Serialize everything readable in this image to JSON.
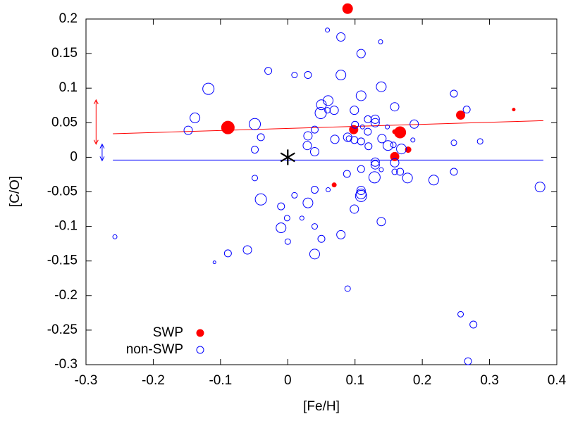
{
  "chart_data": {
    "type": "scatter",
    "x_label": "[Fe/H]",
    "y_label": "[C/O]",
    "xlim": [
      -0.3,
      0.4
    ],
    "xticks": [
      -0.3,
      -0.2,
      -0.1,
      0,
      0.1,
      0.2,
      0.3,
      0.4
    ],
    "ylim": [
      -0.3,
      0.2
    ],
    "yticks": [
      -0.3,
      -0.25,
      -0.2,
      -0.15,
      -0.1,
      -0.05,
      0,
      0.05,
      0.1,
      0.15,
      0.2
    ],
    "legend": "lower left",
    "series": [
      {
        "name": "SWP",
        "color": "#ff0000",
        "filled": true,
        "x": [
          0.089,
          -0.089,
          0.098,
          0.167,
          0.159,
          0.257,
          0.336,
          0.159,
          0.179,
          0.069
        ],
        "values": [
          0.215,
          0.043,
          0.04,
          0.036,
          0.037,
          0.061,
          0.069,
          0.001,
          0.011,
          -0.04
        ],
        "sizes": [
          7,
          9,
          6,
          8,
          3,
          6,
          2,
          6,
          4,
          3
        ]
      },
      {
        "name": "non-SWP",
        "color": "#0000ff",
        "filled": false,
        "x": [
          0.059,
          0.079,
          0.109,
          0.138,
          -0.029,
          0.01,
          0.03,
          0.079,
          -0.118,
          0.109,
          0.139,
          0.247,
          -0.138,
          -0.148,
          -0.049,
          0.05,
          0.06,
          0.069,
          0.059,
          0.049,
          0.099,
          0.119,
          0.13,
          0.13,
          0.159,
          0.188,
          0.266,
          0.1,
          0.04,
          0.03,
          0.111,
          0.119,
          0.148,
          0.089,
          0.099,
          0.091,
          0.07,
          0.029,
          0.04,
          0.109,
          0.12,
          0.14,
          0.186,
          0.169,
          0.247,
          0.286,
          -0.049,
          -0.04,
          0.149,
          0.157,
          0.13,
          0.13,
          0.139,
          0.159,
          0.159,
          0.167,
          0.178,
          0.217,
          0.247,
          0.109,
          0.088,
          0.129,
          0.109,
          0.109,
          0.109,
          0.01,
          0.04,
          0.06,
          0.03,
          -0.01,
          -0.001,
          0.021,
          -0.01,
          -0.04,
          -0.049,
          0.139,
          0.099,
          0.04,
          0.079,
          0.0,
          0.05,
          -0.06,
          -0.089,
          0.04,
          -0.109,
          -0.257,
          0.089,
          0.257,
          0.276,
          0.268,
          0.375
        ],
        "values": [
          0.184,
          0.174,
          0.15,
          0.167,
          0.125,
          0.119,
          0.119,
          0.119,
          0.099,
          0.089,
          0.102,
          0.092,
          0.057,
          0.039,
          0.048,
          0.076,
          0.082,
          0.068,
          0.068,
          0.064,
          0.068,
          0.055,
          0.055,
          0.05,
          0.073,
          0.048,
          0.069,
          0.047,
          0.04,
          0.031,
          0.044,
          0.037,
          0.044,
          0.029,
          0.025,
          0.027,
          0.026,
          0.017,
          0.008,
          0.023,
          0.016,
          0.027,
          0.025,
          0.012,
          0.021,
          0.023,
          0.011,
          0.029,
          0.017,
          0.018,
          -0.007,
          -0.011,
          -0.018,
          -0.008,
          -0.021,
          -0.021,
          -0.03,
          -0.033,
          -0.021,
          -0.017,
          -0.024,
          -0.029,
          -0.048,
          -0.053,
          -0.056,
          -0.055,
          -0.047,
          -0.047,
          -0.066,
          -0.071,
          -0.088,
          -0.088,
          -0.102,
          -0.061,
          -0.03,
          -0.093,
          -0.075,
          -0.1,
          -0.112,
          -0.122,
          -0.118,
          -0.134,
          -0.139,
          -0.14,
          -0.152,
          -0.115,
          -0.19,
          -0.227,
          -0.242,
          -0.295,
          -0.043
        ],
        "sizes": [
          3,
          6,
          6,
          3,
          5,
          4,
          5,
          7,
          8,
          7,
          7,
          5,
          7,
          6,
          8,
          7,
          7,
          6,
          4,
          8,
          6,
          5,
          6,
          6,
          6,
          6,
          5,
          5,
          5,
          6,
          3,
          5,
          3,
          6,
          5,
          4,
          6,
          6,
          6,
          5,
          5,
          6,
          3,
          7,
          4,
          4,
          5,
          5,
          7,
          4,
          6,
          6,
          3,
          6,
          4,
          5,
          7,
          7,
          5,
          5,
          5,
          8,
          6,
          7,
          8,
          4,
          5,
          3,
          7,
          5,
          4,
          3,
          7,
          8,
          4,
          6,
          6,
          4,
          6,
          4,
          5,
          6,
          5,
          7,
          2,
          3,
          4,
          4,
          5,
          5,
          7
        ]
      }
    ],
    "fit_lines": [
      {
        "color": "#ff0000",
        "x": [
          -0.26,
          0.38
        ],
        "values": [
          0.034,
          0.053
        ]
      },
      {
        "color": "#0000ff",
        "x": [
          -0.26,
          0.38
        ],
        "values": [
          -0.004,
          -0.004
        ]
      }
    ],
    "error_bars": [
      {
        "color": "#ff0000",
        "x": -0.285,
        "low": 0.019,
        "high": 0.083
      },
      {
        "color": "#0000ff",
        "x": -0.276,
        "low": -0.005,
        "high": 0.019
      }
    ],
    "sun": {
      "x": 0,
      "value": 0
    }
  }
}
